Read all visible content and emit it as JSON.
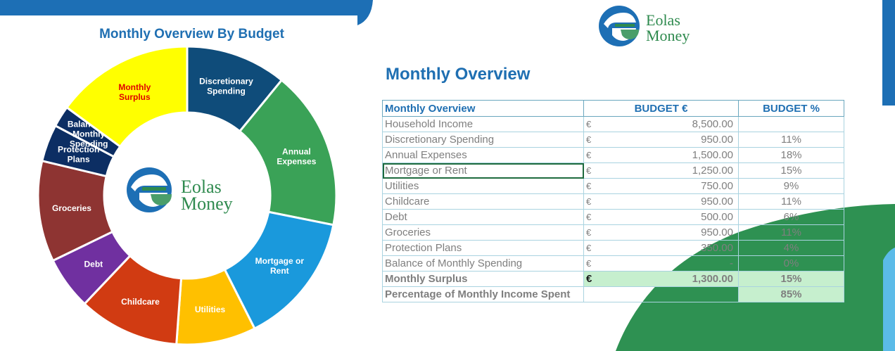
{
  "colors": {
    "discretionary": "#0f4c7a",
    "annual": "#3aa257",
    "mortgage": "#1a99dc",
    "utilities": "#ffc000",
    "childcare": "#d13b12",
    "debt": "#7030a0",
    "groceries": "#8e3432",
    "protection": "#0c2e63",
    "balance": "#0c2e63",
    "surplus": "#ffff00",
    "heading_blue": "#1f6fb2",
    "logo_green": "#2e8a4e",
    "logo_blue": "#1d6fb5"
  },
  "brand": {
    "line1": "Eolas",
    "line2": "Money"
  },
  "chart_data": {
    "type": "pie",
    "title": "Monthly Overview By Budget",
    "variant": "donut",
    "slices": [
      {
        "label": "Discretionary Spending",
        "value": 950,
        "color": "#0f4c7a",
        "label_color": "#ffffff"
      },
      {
        "label": "Annual Expenses",
        "value": 1500,
        "color": "#3aa257",
        "label_color": "#ffffff"
      },
      {
        "label": "Mortgage or Rent",
        "value": 1250,
        "color": "#1a99dc",
        "label_color": "#ffffff"
      },
      {
        "label": "Utilities",
        "value": 750,
        "color": "#ffc000",
        "label_color": "#ffffff"
      },
      {
        "label": "Childcare",
        "value": 950,
        "color": "#d13b12",
        "label_color": "#ffffff"
      },
      {
        "label": "Debt",
        "value": 500,
        "color": "#7030a0",
        "label_color": "#ffffff"
      },
      {
        "label": "Groceries",
        "value": 950,
        "color": "#8e3432",
        "label_color": "#ffffff"
      },
      {
        "label": "Protection Plans",
        "value": 350,
        "color": "#0c2e63",
        "label_color": "#ffffff"
      },
      {
        "label": "Balance of Monthly Spending",
        "value": 0,
        "color": "#0c2e63",
        "label_color": "#ffffff"
      },
      {
        "label": "Monthly Surplus",
        "value": 1300,
        "color": "#ffff00",
        "label_color": "#e00000"
      }
    ]
  },
  "overview": {
    "heading": "Monthly Overview",
    "columns": [
      "Monthly Overview",
      "BUDGET €",
      "BUDGET %"
    ],
    "currency": "€",
    "rows": [
      {
        "label": "Household Income",
        "amount": "8,500.00",
        "pct": ""
      },
      {
        "label": "Discretionary Spending",
        "amount": "950.00",
        "pct": "11%"
      },
      {
        "label": "Annual Expenses",
        "amount": "1,500.00",
        "pct": "18%"
      },
      {
        "label": "Mortgage or Rent",
        "amount": "1,250.00",
        "pct": "15%"
      },
      {
        "label": "Utilities",
        "amount": "750.00",
        "pct": "9%"
      },
      {
        "label": "Childcare",
        "amount": "950.00",
        "pct": "11%"
      },
      {
        "label": "Debt",
        "amount": "500.00",
        "pct": "6%"
      },
      {
        "label": "Groceries",
        "amount": "950.00",
        "pct": "11%"
      },
      {
        "label": "Protection Plans",
        "amount": "350.00",
        "pct": "4%"
      },
      {
        "label": "Balance of Monthly Spending",
        "amount": "-",
        "pct": "0%"
      }
    ],
    "surplus": {
      "label": "Monthly Surplus",
      "amount": "1,300.00",
      "pct": "15%"
    },
    "spent": {
      "label": "Percentage of Monthly Income Spent",
      "pct": "85%"
    }
  }
}
